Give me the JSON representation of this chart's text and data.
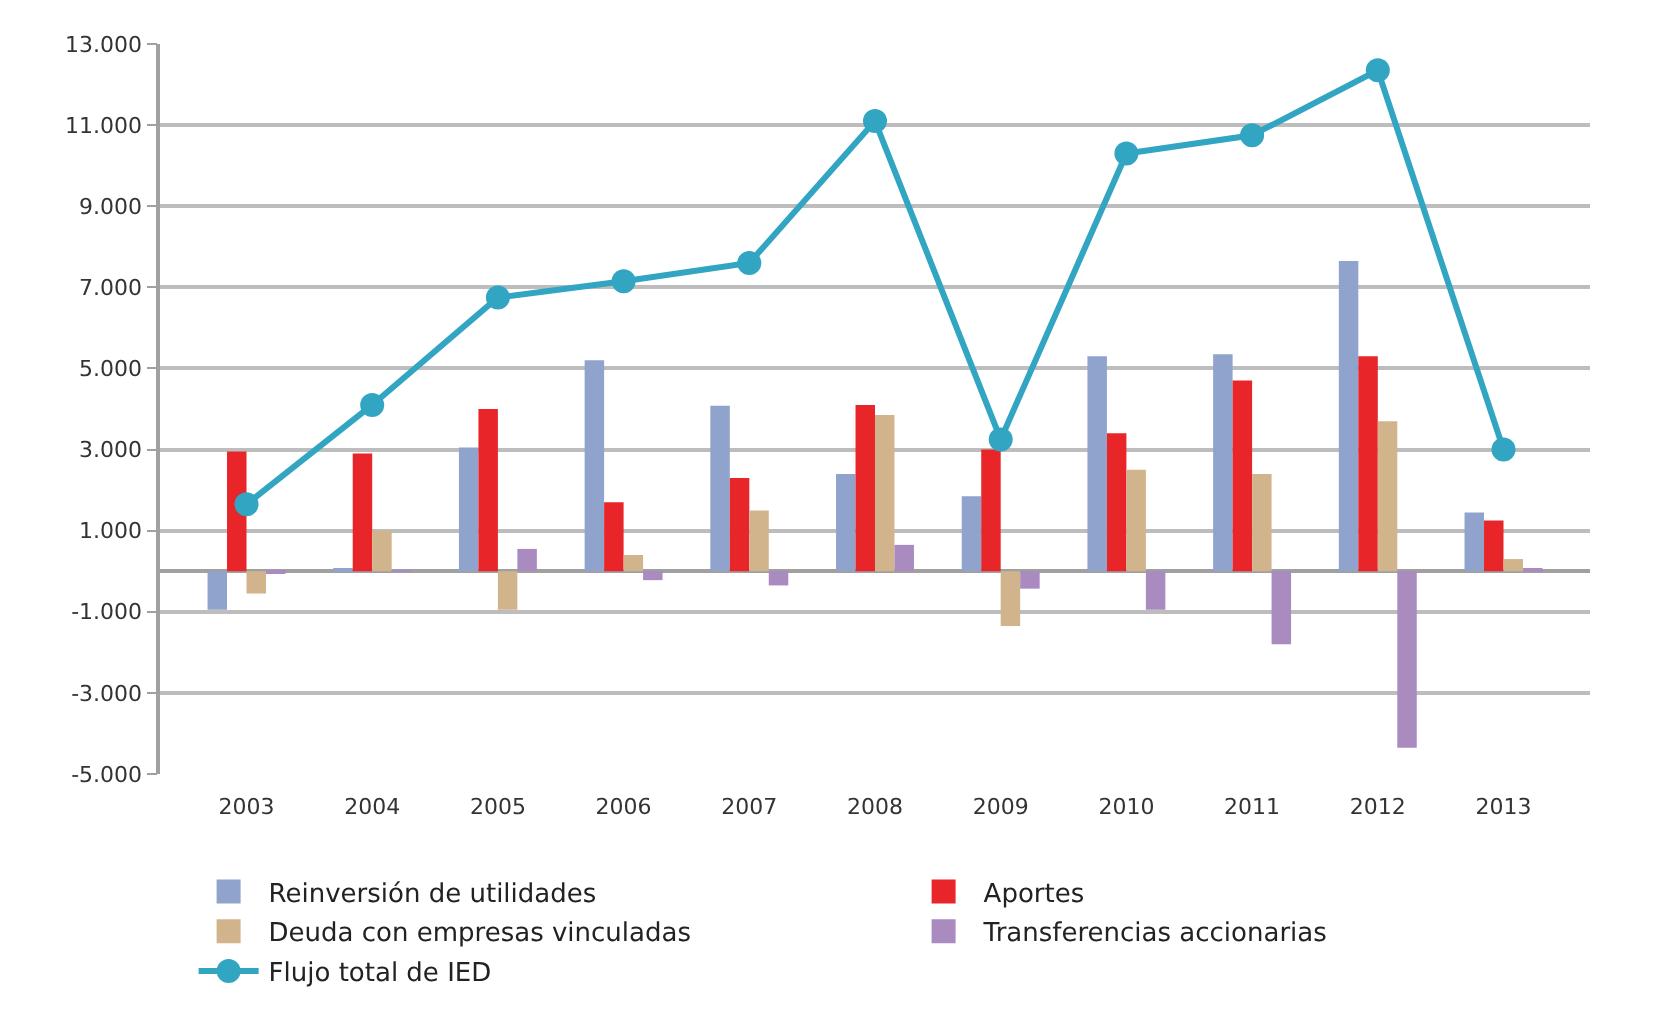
{
  "chart_data": {
    "type": "bar",
    "categories": [
      "2003",
      "2004",
      "2005",
      "2006",
      "2007",
      "2008",
      "2009",
      "2010",
      "2011",
      "2012",
      "2013"
    ],
    "series": [
      {
        "name": "Reinversión de utilidades",
        "color": "#8fa3cc",
        "values": [
          -950,
          50,
          3050,
          5200,
          4080,
          2400,
          1850,
          5300,
          5350,
          7650,
          1450
        ]
      },
      {
        "name": "Aportes",
        "color": "#e8262a",
        "values": [
          2950,
          2900,
          4000,
          1700,
          2300,
          4100,
          3000,
          3400,
          4700,
          5300,
          1250
        ]
      },
      {
        "name": "Deuda con empresas vinculadas",
        "color": "#d2b48c",
        "values": [
          -550,
          1000,
          -950,
          400,
          1500,
          3850,
          -1350,
          2500,
          2400,
          3700,
          300
        ]
      },
      {
        "name": "Transferencias accionarias",
        "color": "#a98bbf",
        "values": [
          -30,
          30,
          550,
          -220,
          -350,
          650,
          -430,
          -950,
          -1800,
          -4350,
          50
        ]
      },
      {
        "name": "Flujo total de IED",
        "type": "line",
        "color": "#31a5c2",
        "values": [
          1650,
          4100,
          6750,
          7150,
          7600,
          11100,
          3250,
          10300,
          10750,
          12350,
          3000
        ]
      }
    ],
    "ylim": [
      -5000,
      13000
    ],
    "yticks": [
      {
        "value": -5000,
        "label": "-5.000"
      },
      {
        "value": -3000,
        "label": "-3.000"
      },
      {
        "value": -1000,
        "label": "-1.000"
      },
      {
        "value": 1000,
        "label": "1.000"
      },
      {
        "value": 3000,
        "label": "3.000"
      },
      {
        "value": 5000,
        "label": "5.000"
      },
      {
        "value": 7000,
        "label": "7.000"
      },
      {
        "value": 9000,
        "label": "9.000"
      },
      {
        "value": 11000,
        "label": "11.000"
      },
      {
        "value": 13000,
        "label": "13.000"
      }
    ],
    "grid": "y",
    "legend": "bottom",
    "marker": "circle",
    "line_style": "solid"
  }
}
